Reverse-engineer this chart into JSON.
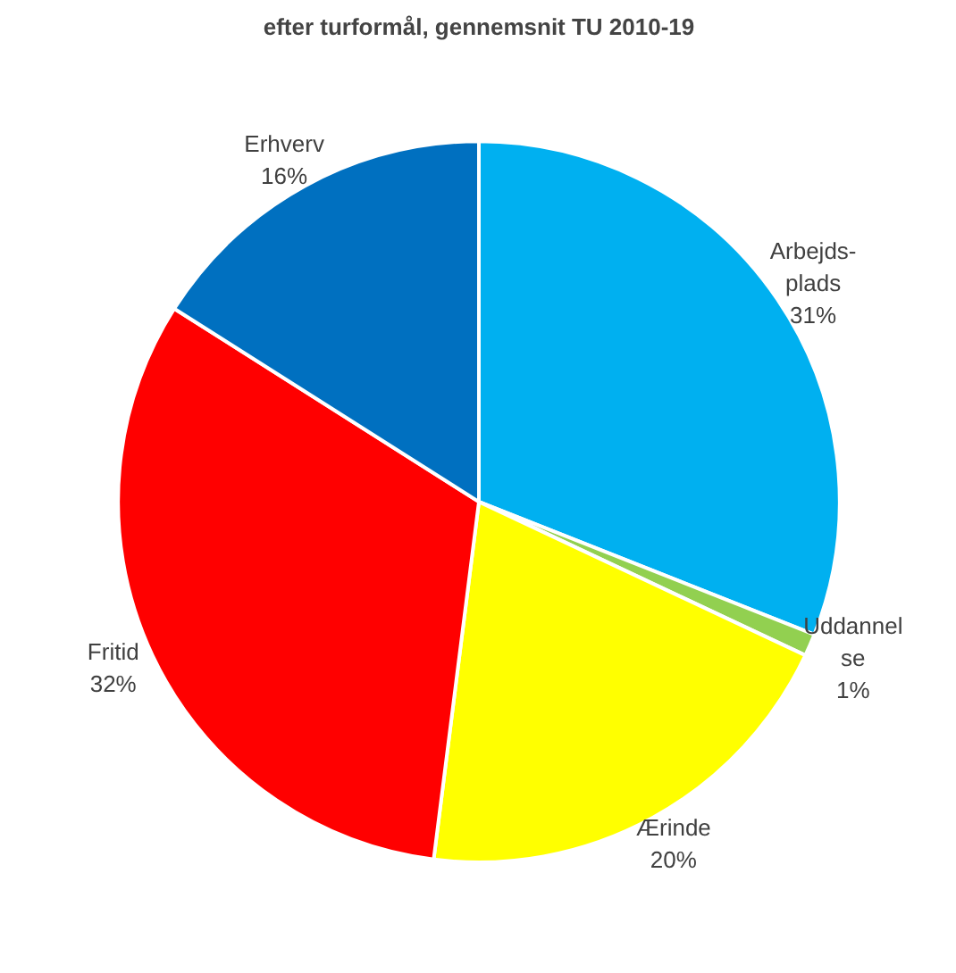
{
  "chart_data": {
    "type": "pie",
    "title": "efter turformål, gennemsnit TU 2010-19",
    "categories": [
      "Arbejds-\nplads",
      "Uddannel\nse",
      "Ærinde",
      "Fritid",
      "Erhverv"
    ],
    "values": [
      31,
      1,
      20,
      32,
      16
    ],
    "value_labels": [
      "31%",
      "1%",
      "20%",
      "32%",
      "16%"
    ],
    "colors": [
      "#00b0f0",
      "#92d050",
      "#ffff00",
      "#ff0000",
      "#0070c0"
    ]
  }
}
